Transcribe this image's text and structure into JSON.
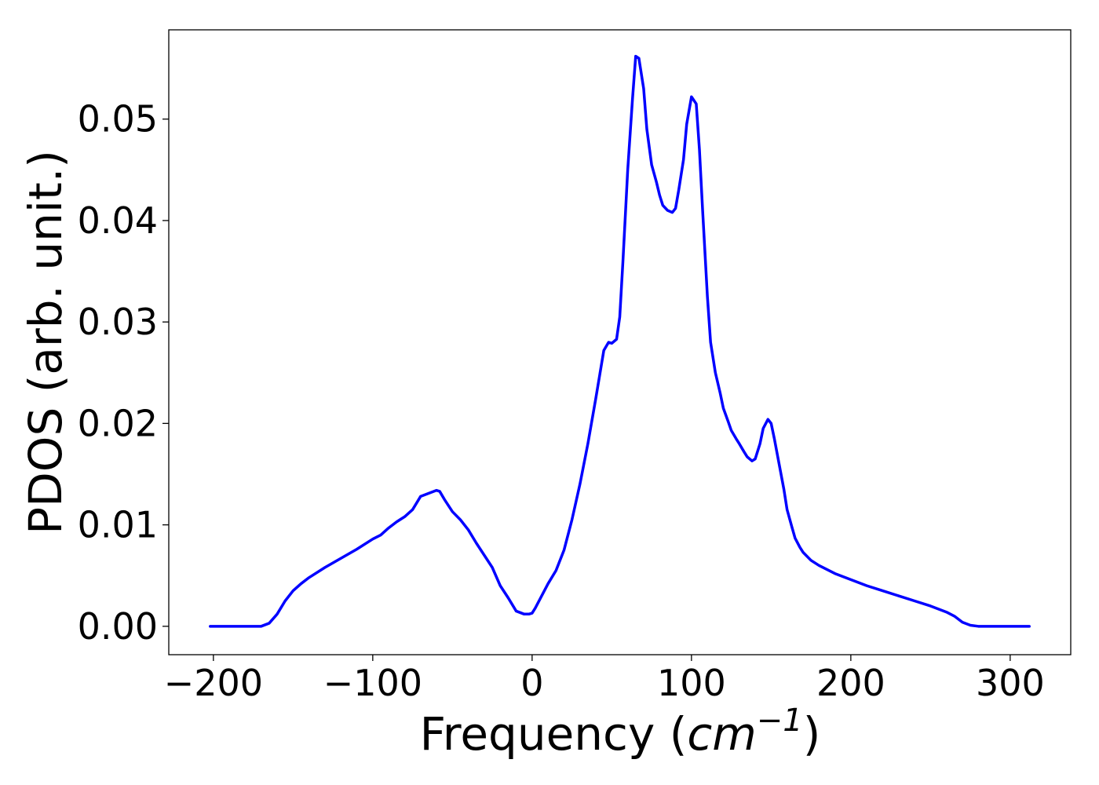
{
  "chart_data": {
    "type": "line",
    "title": "",
    "ylabel": "PDOS (arb. unit.)",
    "xlabel": {
      "prefix": "Frequency (",
      "unit_base": "cm",
      "unit_exponent": "−1",
      "suffix": ")"
    },
    "xlim": [
      -228,
      338
    ],
    "ylim": [
      -0.0028,
      0.0588
    ],
    "x_ticks": [
      {
        "value": -200,
        "label": "−200"
      },
      {
        "value": -100,
        "label": "−100"
      },
      {
        "value": 0,
        "label": "0"
      },
      {
        "value": 100,
        "label": "100"
      },
      {
        "value": 200,
        "label": "200"
      },
      {
        "value": 300,
        "label": "300"
      }
    ],
    "y_ticks": [
      {
        "value": 0.0,
        "label": "0.00"
      },
      {
        "value": 0.01,
        "label": "0.01"
      },
      {
        "value": 0.02,
        "label": "0.02"
      },
      {
        "value": 0.03,
        "label": "0.03"
      },
      {
        "value": 0.04,
        "label": "0.04"
      },
      {
        "value": 0.05,
        "label": "0.05"
      }
    ],
    "grid": false,
    "legend": "none",
    "series": [
      {
        "color": "#0000ff",
        "x": [
          -202,
          -190,
          -180,
          -170,
          -165,
          -160,
          -155,
          -150,
          -145,
          -140,
          -130,
          -120,
          -110,
          -100,
          -95,
          -90,
          -85,
          -80,
          -75,
          -70,
          -65,
          -60,
          -58,
          -55,
          -50,
          -45,
          -40,
          -35,
          -30,
          -25,
          -20,
          -15,
          -10,
          -5,
          -2,
          0,
          2,
          5,
          10,
          15,
          20,
          25,
          30,
          35,
          40,
          45,
          48,
          50,
          53,
          55,
          57,
          60,
          63,
          65,
          67,
          70,
          72,
          75,
          78,
          80,
          82,
          85,
          88,
          90,
          92,
          95,
          97,
          100,
          103,
          105,
          107,
          110,
          112,
          115,
          118,
          120,
          123,
          125,
          128,
          130,
          133,
          135,
          138,
          140,
          143,
          145,
          148,
          150,
          152,
          155,
          158,
          160,
          163,
          165,
          168,
          170,
          175,
          180,
          185,
          190,
          200,
          210,
          220,
          230,
          240,
          250,
          260,
          265,
          270,
          275,
          280,
          290,
          300,
          312
        ],
        "y": [
          0.0,
          0.0,
          0.0,
          0.0,
          0.0003,
          0.0012,
          0.0025,
          0.0035,
          0.0042,
          0.0048,
          0.0058,
          0.0067,
          0.0076,
          0.0086,
          0.009,
          0.0097,
          0.0103,
          0.0108,
          0.0115,
          0.0128,
          0.0131,
          0.0134,
          0.0133,
          0.0125,
          0.0113,
          0.0105,
          0.0095,
          0.0082,
          0.007,
          0.0058,
          0.004,
          0.0028,
          0.0015,
          0.0012,
          0.0012,
          0.0013,
          0.0018,
          0.0027,
          0.0042,
          0.0055,
          0.0075,
          0.0105,
          0.014,
          0.018,
          0.0225,
          0.0272,
          0.028,
          0.0279,
          0.0283,
          0.0305,
          0.036,
          0.045,
          0.052,
          0.0562,
          0.056,
          0.053,
          0.049,
          0.0455,
          0.0438,
          0.0425,
          0.0415,
          0.041,
          0.0408,
          0.0412,
          0.043,
          0.046,
          0.0495,
          0.0522,
          0.0515,
          0.047,
          0.041,
          0.0325,
          0.028,
          0.025,
          0.023,
          0.0215,
          0.0202,
          0.0193,
          0.0185,
          0.018,
          0.0172,
          0.0167,
          0.0163,
          0.0165,
          0.018,
          0.0195,
          0.0204,
          0.02,
          0.0185,
          0.016,
          0.0135,
          0.0115,
          0.0098,
          0.0087,
          0.0078,
          0.0073,
          0.0065,
          0.006,
          0.0056,
          0.0052,
          0.0046,
          0.004,
          0.0035,
          0.003,
          0.0025,
          0.002,
          0.0014,
          0.001,
          0.0004,
          0.0001,
          0.0,
          0.0,
          0.0,
          0.0
        ]
      }
    ]
  }
}
